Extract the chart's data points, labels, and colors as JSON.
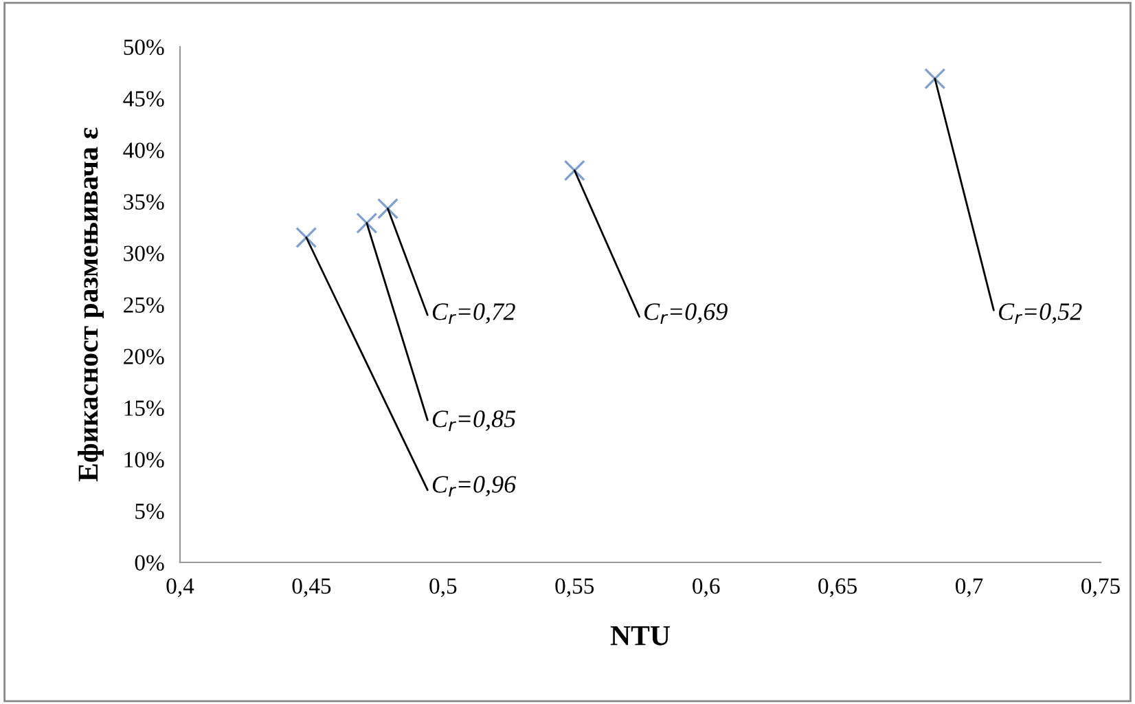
{
  "chart_data": {
    "type": "scatter",
    "xlabel": "NTU",
    "ylabel": "Ефикасност размењивача ε",
    "x": [
      0.448,
      0.471,
      0.479,
      0.55,
      0.687
    ],
    "series": [
      {
        "color": "#7f9fcf",
        "values": [
          31.5,
          32.9,
          34.3,
          38.0,
          46.9
        ]
      }
    ],
    "marker": "cross",
    "grid": false,
    "legend": false,
    "xlim": [
      0.4,
      0.75
    ],
    "xticks": [
      {
        "value": 0.4,
        "label": "0,4"
      },
      {
        "value": 0.45,
        "label": "0,45"
      },
      {
        "value": 0.5,
        "label": "0,5"
      },
      {
        "value": 0.55,
        "label": "0,55"
      },
      {
        "value": 0.6,
        "label": "0,6"
      },
      {
        "value": 0.65,
        "label": "0,65"
      },
      {
        "value": 0.7,
        "label": "0,7"
      },
      {
        "value": 0.75,
        "label": "0,75"
      }
    ],
    "ylim": [
      0,
      50
    ],
    "yticks": [
      {
        "value": 0,
        "label": "0%"
      },
      {
        "value": 5,
        "label": "5%"
      },
      {
        "value": 10,
        "label": "10%"
      },
      {
        "value": 15,
        "label": "15%"
      },
      {
        "value": 20,
        "label": "20%"
      },
      {
        "value": 25,
        "label": "25%"
      },
      {
        "value": 30,
        "label": "30%"
      },
      {
        "value": 35,
        "label": "35%"
      },
      {
        "value": 40,
        "label": "40%"
      },
      {
        "value": 45,
        "label": "45%"
      },
      {
        "value": 50,
        "label": "50%"
      }
    ],
    "annotations": [
      {
        "text": "C$_{r}$=0,96",
        "x": 0.448,
        "y": 31.5
      },
      {
        "text": "C$_{r}$=0,85",
        "x": 0.471,
        "y": 32.9
      },
      {
        "text": "C$_{r}$=0,72",
        "x": 0.479,
        "y": 34.3
      },
      {
        "text": "C$_{r}$=0,69",
        "x": 0.55,
        "y": 38.0
      },
      {
        "text": "C$_{r}$=0,52",
        "x": 0.687,
        "y": 46.9
      }
    ]
  }
}
